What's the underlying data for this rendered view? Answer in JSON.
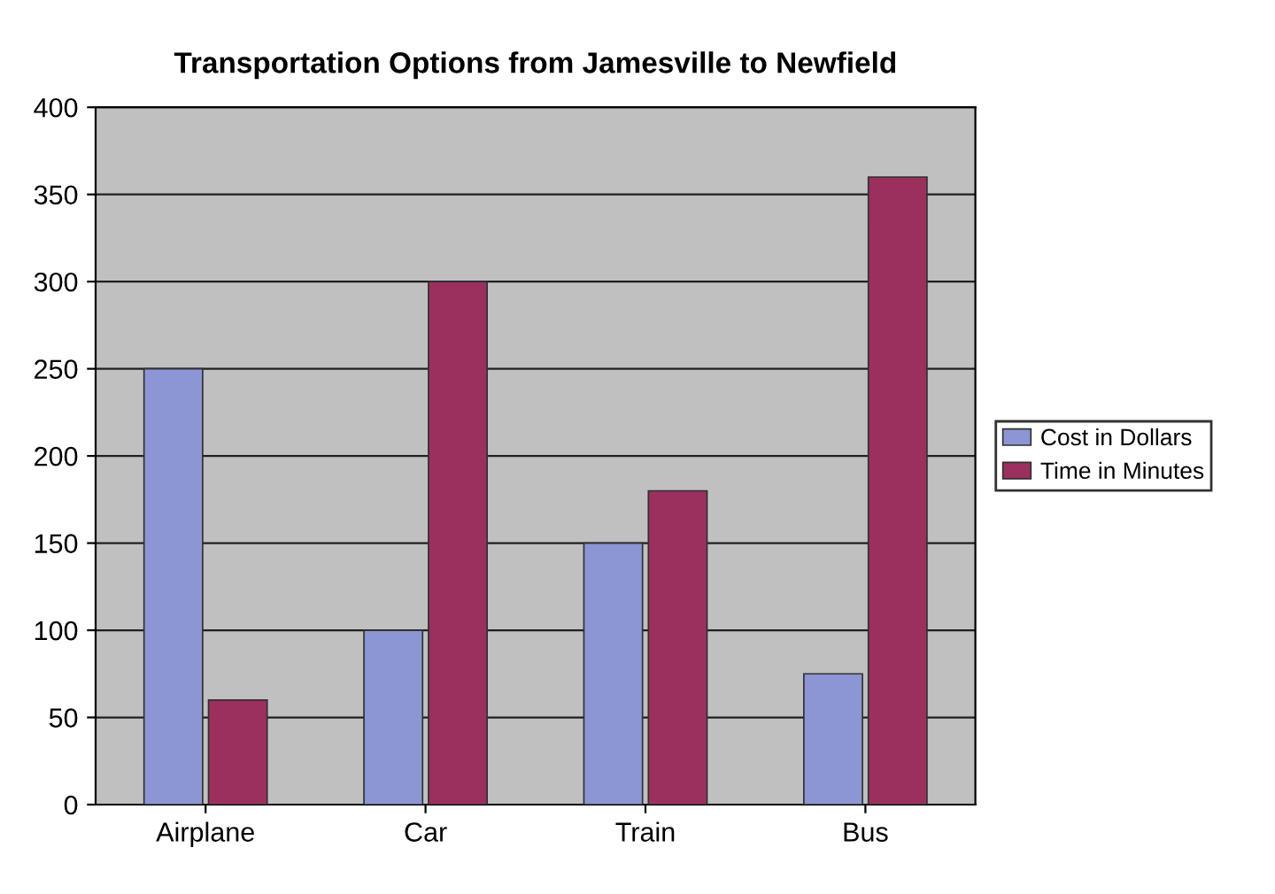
{
  "chart_data": {
    "type": "bar",
    "title": "Transportation Options from Jamesville to Newfield",
    "categories": [
      "Airplane",
      "Car",
      "Train",
      "Bus"
    ],
    "series": [
      {
        "name": "Cost in Dollars",
        "color": "#8c96d4",
        "values": [
          250,
          100,
          150,
          75
        ]
      },
      {
        "name": "Time in Minutes",
        "color": "#9b305f",
        "values": [
          60,
          300,
          180,
          360
        ]
      }
    ],
    "ylim": [
      0,
      400
    ],
    "yticks": [
      0,
      50,
      100,
      150,
      200,
      250,
      300,
      350,
      400
    ],
    "grid": "y",
    "legend": "right"
  }
}
